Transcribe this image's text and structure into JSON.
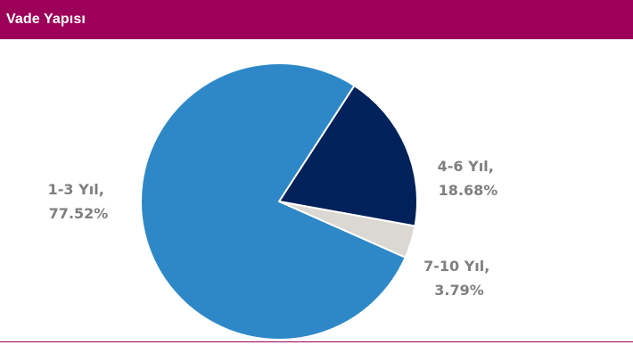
{
  "header": {
    "title": "Vade Yapısı"
  },
  "colors": {
    "header_bg": "#9c0058",
    "label_text": "#7f7f7f"
  },
  "chart_data": {
    "type": "pie",
    "title": "Vade Yapısı",
    "legend": "none",
    "slices": [
      {
        "name": "4-6 Yıl",
        "label_line1": "4-6 Yıl,",
        "label_line2": "18.68%",
        "value": 18.68,
        "color": "#00215a"
      },
      {
        "name": "7-10 Yıl",
        "label_line1": "7-10 Yıl,",
        "label_line2": "3.79%",
        "value": 3.79,
        "color": "#dbd7d2"
      },
      {
        "name": "1-3 Yıl",
        "label_line1": "1-3 Yıl,",
        "label_line2": "77.52%",
        "value": 77.52,
        "color": "#2e88c7"
      }
    ]
  }
}
